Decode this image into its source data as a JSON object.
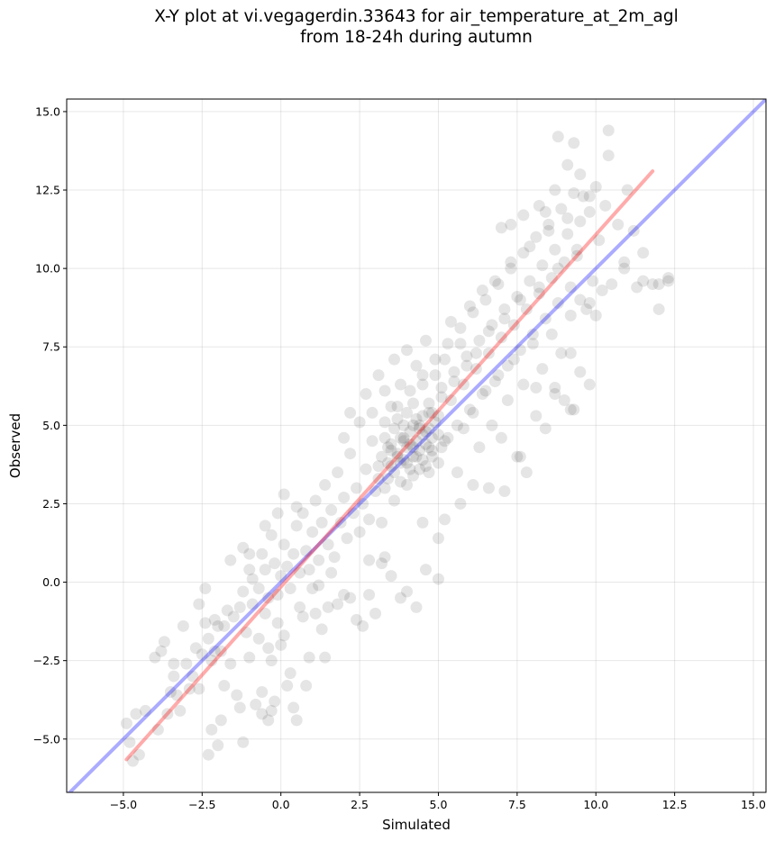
{
  "chart_data": {
    "type": "scatter",
    "title": "X-Y plot at vi.vegagerdin.33643 for air_temperature_at_2m_agl",
    "subtitle": "from 18-24h during autumn",
    "xlabel": "Simulated",
    "ylabel": "Observed",
    "xlim": [
      -6.8,
      15.4
    ],
    "ylim": [
      -6.7,
      15.4
    ],
    "xticks": [
      -5.0,
      -2.5,
      0.0,
      2.5,
      5.0,
      7.5,
      10.0,
      12.5,
      15.0
    ],
    "yticks": [
      -5.0,
      -2.5,
      0.0,
      2.5,
      5.0,
      7.5,
      10.0,
      12.5,
      15.0
    ],
    "xtick_labels": [
      "−5.0",
      "−2.5",
      "0.0",
      "2.5",
      "5.0",
      "7.5",
      "10.0",
      "12.5",
      "15.0"
    ],
    "ytick_labels": [
      "−5.0",
      "−2.5",
      "0.0",
      "2.5",
      "5.0",
      "7.5",
      "10.0",
      "12.5",
      "15.0"
    ],
    "grid": true,
    "point_color": "#000000",
    "point_alpha": 0.1,
    "lines": [
      {
        "kind": "identity",
        "color": "#0000ff",
        "alpha": 0.33,
        "x": [
          -6.8,
          15.4
        ],
        "y": [
          -6.8,
          15.4
        ]
      },
      {
        "kind": "regression",
        "color": "#ff0000",
        "alpha": 0.33,
        "x": [
          -4.9,
          11.8
        ],
        "y": [
          -5.65,
          13.1
        ]
      }
    ],
    "points": [
      [
        -4.9,
        -4.5
      ],
      [
        -4.8,
        -5.1
      ],
      [
        -4.7,
        -5.7
      ],
      [
        -4.6,
        -4.2
      ],
      [
        -4.5,
        -5.5
      ],
      [
        -4.3,
        -4.1
      ],
      [
        -4.0,
        -2.4
      ],
      [
        -3.9,
        -4.7
      ],
      [
        -3.8,
        -2.2
      ],
      [
        -3.7,
        -1.9
      ],
      [
        -3.6,
        -4.2
      ],
      [
        -3.5,
        -3.5
      ],
      [
        -3.4,
        -2.6
      ],
      [
        -3.4,
        -3.0
      ],
      [
        -3.3,
        -3.6
      ],
      [
        -3.1,
        -1.4
      ],
      [
        -3.0,
        -2.6
      ],
      [
        -2.9,
        -3.4
      ],
      [
        -2.8,
        -3.0
      ],
      [
        -2.7,
        -2.1
      ],
      [
        -2.6,
        -0.7
      ],
      [
        -2.5,
        -2.3
      ],
      [
        -2.4,
        -0.2
      ],
      [
        -2.3,
        -1.8
      ],
      [
        -2.2,
        -2.5
      ],
      [
        -2.1,
        -1.2
      ],
      [
        -2.0,
        -1.4
      ],
      [
        -1.9,
        -2.2
      ],
      [
        -1.8,
        -3.3
      ],
      [
        -1.7,
        -0.9
      ],
      [
        -1.6,
        -2.6
      ],
      [
        -1.5,
        -1.1
      ],
      [
        -1.4,
        -3.6
      ],
      [
        -1.3,
        -4.0
      ],
      [
        -1.2,
        -0.3
      ],
      [
        -1.1,
        -1.6
      ],
      [
        -1.0,
        -2.4
      ],
      [
        -1.0,
        0.9
      ],
      [
        -0.9,
        -0.7
      ],
      [
        -0.8,
        -3.9
      ],
      [
        -0.7,
        -1.8
      ],
      [
        -0.6,
        -3.5
      ],
      [
        -0.5,
        -1.0
      ],
      [
        -0.4,
        -2.1
      ],
      [
        -0.3,
        -4.1
      ],
      [
        -0.2,
        -3.8
      ],
      [
        -0.1,
        -1.3
      ],
      [
        0.0,
        -2.0
      ],
      [
        0.1,
        -1.7
      ],
      [
        0.2,
        -3.3
      ],
      [
        0.3,
        -2.9
      ],
      [
        0.4,
        -4.0
      ],
      [
        0.5,
        -4.4
      ],
      [
        0.6,
        -0.8
      ],
      [
        0.7,
        -1.1
      ],
      [
        0.8,
        -3.3
      ],
      [
        0.9,
        -2.4
      ],
      [
        1.0,
        -0.2
      ],
      [
        1.1,
        -1.0
      ],
      [
        1.3,
        -1.5
      ],
      [
        1.4,
        -2.4
      ],
      [
        1.6,
        0.3
      ],
      [
        1.8,
        -0.7
      ],
      [
        2.0,
        -0.4
      ],
      [
        2.2,
        -0.5
      ],
      [
        2.4,
        -1.2
      ],
      [
        2.6,
        -1.4
      ],
      [
        2.8,
        -0.4
      ],
      [
        3.0,
        -1.0
      ],
      [
        3.2,
        0.6
      ],
      [
        3.5,
        0.2
      ],
      [
        3.8,
        -0.5
      ],
      [
        4.0,
        -0.3
      ],
      [
        4.3,
        -0.8
      ],
      [
        4.6,
        0.4
      ],
      [
        5.0,
        0.1
      ],
      [
        -1.2,
        1.1
      ],
      [
        -1.0,
        0.4
      ],
      [
        -0.9,
        0.1
      ],
      [
        -0.7,
        -0.2
      ],
      [
        -0.6,
        0.9
      ],
      [
        -0.5,
        0.4
      ],
      [
        -0.4,
        -0.5
      ],
      [
        -0.3,
        1.5
      ],
      [
        -0.2,
        0.6
      ],
      [
        -0.1,
        -0.4
      ],
      [
        0.0,
        0.2
      ],
      [
        0.1,
        1.2
      ],
      [
        0.2,
        0.5
      ],
      [
        0.3,
        -0.2
      ],
      [
        0.4,
        0.9
      ],
      [
        0.5,
        1.8
      ],
      [
        0.6,
        0.3
      ],
      [
        0.7,
        2.2
      ],
      [
        0.8,
        1.0
      ],
      [
        0.9,
        0.4
      ],
      [
        1.0,
        1.6
      ],
      [
        1.1,
        2.6
      ],
      [
        1.2,
        0.7
      ],
      [
        1.3,
        1.9
      ],
      [
        1.4,
        3.1
      ],
      [
        1.5,
        1.2
      ],
      [
        1.6,
        2.3
      ],
      [
        1.7,
        0.8
      ],
      [
        1.8,
        3.5
      ],
      [
        1.9,
        1.9
      ],
      [
        2.0,
        2.7
      ],
      [
        2.1,
        1.4
      ],
      [
        2.2,
        4.1
      ],
      [
        2.3,
        2.2
      ],
      [
        2.4,
        3.0
      ],
      [
        2.5,
        1.6
      ],
      [
        2.6,
        2.5
      ],
      [
        2.7,
        3.6
      ],
      [
        2.8,
        2.0
      ],
      [
        2.9,
        4.5
      ],
      [
        3.0,
        2.9
      ],
      [
        3.1,
        3.7
      ],
      [
        3.2,
        1.9
      ],
      [
        3.3,
        5.1
      ],
      [
        3.4,
        3.3
      ],
      [
        3.5,
        4.2
      ],
      [
        3.6,
        2.6
      ],
      [
        3.7,
        5.6
      ],
      [
        3.8,
        3.8
      ],
      [
        3.9,
        4.6
      ],
      [
        4.0,
        3.1
      ],
      [
        4.1,
        6.1
      ],
      [
        4.2,
        4.3
      ],
      [
        4.3,
        5.2
      ],
      [
        4.4,
        3.6
      ],
      [
        4.5,
        6.6
      ],
      [
        4.6,
        4.8
      ],
      [
        4.7,
        5.7
      ],
      [
        4.8,
        4.0
      ],
      [
        4.9,
        7.1
      ],
      [
        5.0,
        5.3
      ],
      [
        5.1,
        6.2
      ],
      [
        5.2,
        4.5
      ],
      [
        5.3,
        7.6
      ],
      [
        5.4,
        5.8
      ],
      [
        5.5,
        6.7
      ],
      [
        5.6,
        5.0
      ],
      [
        5.7,
        8.1
      ],
      [
        5.8,
        6.3
      ],
      [
        5.9,
        7.2
      ],
      [
        6.0,
        5.5
      ],
      [
        6.1,
        8.6
      ],
      [
        6.2,
        6.8
      ],
      [
        6.3,
        7.7
      ],
      [
        6.4,
        6.0
      ],
      [
        6.5,
        9.0
      ],
      [
        6.6,
        7.3
      ],
      [
        6.7,
        8.2
      ],
      [
        6.8,
        6.4
      ],
      [
        6.9,
        9.5
      ],
      [
        7.0,
        7.8
      ],
      [
        7.1,
        8.7
      ],
      [
        7.2,
        6.9
      ],
      [
        7.3,
        10.0
      ],
      [
        7.4,
        8.2
      ],
      [
        7.5,
        9.1
      ],
      [
        7.6,
        7.4
      ],
      [
        7.7,
        10.5
      ],
      [
        7.8,
        8.7
      ],
      [
        7.9,
        9.6
      ],
      [
        8.0,
        7.9
      ],
      [
        8.1,
        11.0
      ],
      [
        8.2,
        9.2
      ],
      [
        8.3,
        10.1
      ],
      [
        8.4,
        8.4
      ],
      [
        8.5,
        11.4
      ],
      [
        8.6,
        9.7
      ],
      [
        8.7,
        10.6
      ],
      [
        8.8,
        8.9
      ],
      [
        8.9,
        11.9
      ],
      [
        9.0,
        10.2
      ],
      [
        9.1,
        11.1
      ],
      [
        9.2,
        9.4
      ],
      [
        9.3,
        12.4
      ],
      [
        9.4,
        10.6
      ],
      [
        9.5,
        11.5
      ],
      [
        2.0,
        4.6
      ],
      [
        2.2,
        5.4
      ],
      [
        2.5,
        5.1
      ],
      [
        2.7,
        6.0
      ],
      [
        2.9,
        5.4
      ],
      [
        3.1,
        6.6
      ],
      [
        3.3,
        6.1
      ],
      [
        3.4,
        4.3
      ],
      [
        3.5,
        5.6
      ],
      [
        3.6,
        7.1
      ],
      [
        3.7,
        4.0
      ],
      [
        3.8,
        6.3
      ],
      [
        3.9,
        5.0
      ],
      [
        4.0,
        7.4
      ],
      [
        4.1,
        4.4
      ],
      [
        4.2,
        5.7
      ],
      [
        4.3,
        6.9
      ],
      [
        4.4,
        4.9
      ],
      [
        4.5,
        6.3
      ],
      [
        4.6,
        7.7
      ],
      [
        4.7,
        5.4
      ],
      [
        4.8,
        4.2
      ],
      [
        4.9,
        6.6
      ],
      [
        5.0,
        3.8
      ],
      [
        5.1,
        5.9
      ],
      [
        5.2,
        7.1
      ],
      [
        5.3,
        4.6
      ],
      [
        5.4,
        8.3
      ],
      [
        5.5,
        6.4
      ],
      [
        5.6,
        3.5
      ],
      [
        5.7,
        7.6
      ],
      [
        5.8,
        4.9
      ],
      [
        5.9,
        6.9
      ],
      [
        6.0,
        8.8
      ],
      [
        6.1,
        5.4
      ],
      [
        6.2,
        7.3
      ],
      [
        6.3,
        4.3
      ],
      [
        6.4,
        9.3
      ],
      [
        6.5,
        6.1
      ],
      [
        6.6,
        8.0
      ],
      [
        6.7,
        5.0
      ],
      [
        6.8,
        9.6
      ],
      [
        6.9,
        6.6
      ],
      [
        7.0,
        4.6
      ],
      [
        7.1,
        8.4
      ],
      [
        7.2,
        5.8
      ],
      [
        7.3,
        10.2
      ],
      [
        7.4,
        7.1
      ],
      [
        7.5,
        4.0
      ],
      [
        7.6,
        9.0
      ],
      [
        7.7,
        6.3
      ],
      [
        7.8,
        3.5
      ],
      [
        7.9,
        10.7
      ],
      [
        8.0,
        7.6
      ],
      [
        8.1,
        5.3
      ],
      [
        8.2,
        9.4
      ],
      [
        8.3,
        6.8
      ],
      [
        8.4,
        4.9
      ],
      [
        8.5,
        11.2
      ],
      [
        8.6,
        7.9
      ],
      [
        8.7,
        6.2
      ],
      [
        8.8,
        10.0
      ],
      [
        8.9,
        7.3
      ],
      [
        9.0,
        5.8
      ],
      [
        9.1,
        11.6
      ],
      [
        9.2,
        8.5
      ],
      [
        9.3,
        5.5
      ],
      [
        9.4,
        10.4
      ],
      [
        9.5,
        9.0
      ],
      [
        9.6,
        12.3
      ],
      [
        9.7,
        8.7
      ],
      [
        9.8,
        11.8
      ],
      [
        9.9,
        9.6
      ],
      [
        10.0,
        12.6
      ],
      [
        10.1,
        10.9
      ],
      [
        10.2,
        9.3
      ],
      [
        10.3,
        12.0
      ],
      [
        10.4,
        13.6
      ],
      [
        10.5,
        9.5
      ],
      [
        10.7,
        11.4
      ],
      [
        10.9,
        10.2
      ],
      [
        11.0,
        12.5
      ],
      [
        11.3,
        9.4
      ],
      [
        11.5,
        10.5
      ],
      [
        11.8,
        9.5
      ],
      [
        12.0,
        8.7
      ],
      [
        12.3,
        9.7
      ],
      [
        12.3,
        9.6
      ],
      [
        3.5,
        4.4
      ],
      [
        3.6,
        4.9
      ],
      [
        3.7,
        4.1
      ],
      [
        3.8,
        4.6
      ],
      [
        3.9,
        3.9
      ],
      [
        4.0,
        4.3
      ],
      [
        4.1,
        4.8
      ],
      [
        4.2,
        4.0
      ],
      [
        4.3,
        4.5
      ],
      [
        4.4,
        4.2
      ],
      [
        4.5,
        4.7
      ],
      [
        4.6,
        4.4
      ],
      [
        4.7,
        4.9
      ],
      [
        4.8,
        4.6
      ],
      [
        3.4,
        3.8
      ],
      [
        3.6,
        3.5
      ],
      [
        3.9,
        4.5
      ],
      [
        4.1,
        3.6
      ],
      [
        4.3,
        4.0
      ],
      [
        4.4,
        5.0
      ],
      [
        4.5,
        3.9
      ],
      [
        4.7,
        4.3
      ],
      [
        4.9,
        5.1
      ],
      [
        5.0,
        4.7
      ],
      [
        3.2,
        4.0
      ],
      [
        3.3,
        4.6
      ],
      [
        3.7,
        5.2
      ],
      [
        4.0,
        5.4
      ],
      [
        4.2,
        3.4
      ],
      [
        4.6,
        3.7
      ],
      [
        4.8,
        5.4
      ],
      [
        5.1,
        4.3
      ],
      [
        3.1,
        3.3
      ],
      [
        3.3,
        3.0
      ],
      [
        3.5,
        3.7
      ],
      [
        3.8,
        3.2
      ],
      [
        4.0,
        3.8
      ],
      [
        4.2,
        5.0
      ],
      [
        4.5,
        5.3
      ],
      [
        4.7,
        3.5
      ],
      [
        8.8,
        14.2
      ],
      [
        9.3,
        14.0
      ],
      [
        9.1,
        13.3
      ],
      [
        9.5,
        13.0
      ],
      [
        10.4,
        14.4
      ],
      [
        8.7,
        12.5
      ],
      [
        9.8,
        12.3
      ],
      [
        8.4,
        11.8
      ],
      [
        8.2,
        12.0
      ],
      [
        7.7,
        11.7
      ],
      [
        7.3,
        11.4
      ],
      [
        7.0,
        11.3
      ],
      [
        10.9,
        10.0
      ],
      [
        11.2,
        11.2
      ],
      [
        12.0,
        9.5
      ],
      [
        11.5,
        9.6
      ],
      [
        10.0,
        8.5
      ],
      [
        9.8,
        8.9
      ],
      [
        9.2,
        7.3
      ],
      [
        9.5,
        6.7
      ],
      [
        9.8,
        6.3
      ],
      [
        8.7,
        6.0
      ],
      [
        8.1,
        6.2
      ],
      [
        9.2,
        5.5
      ],
      [
        7.6,
        4.0
      ],
      [
        7.1,
        2.9
      ],
      [
        6.6,
        3.0
      ],
      [
        6.1,
        3.1
      ],
      [
        5.7,
        2.5
      ],
      [
        5.2,
        2.0
      ],
      [
        5.0,
        1.4
      ],
      [
        4.5,
        1.9
      ],
      [
        2.8,
        0.7
      ],
      [
        3.3,
        0.8
      ],
      [
        1.2,
        -0.1
      ],
      [
        1.5,
        -0.8
      ],
      [
        -0.1,
        2.2
      ],
      [
        -0.5,
        1.8
      ],
      [
        0.5,
        2.4
      ],
      [
        0.1,
        2.8
      ],
      [
        -1.6,
        0.7
      ],
      [
        -1.3,
        -0.8
      ],
      [
        -1.8,
        -1.4
      ],
      [
        -2.4,
        -1.3
      ],
      [
        -2.1,
        -2.2
      ],
      [
        -0.3,
        -2.5
      ],
      [
        -0.6,
        -4.2
      ],
      [
        -0.4,
        -4.4
      ],
      [
        -2.6,
        -3.4
      ],
      [
        -3.2,
        -4.1
      ],
      [
        -1.2,
        -5.1
      ],
      [
        -2.2,
        -4.7
      ],
      [
        -1.9,
        -4.4
      ],
      [
        -2.3,
        -5.5
      ],
      [
        -2.0,
        -5.2
      ]
    ]
  }
}
